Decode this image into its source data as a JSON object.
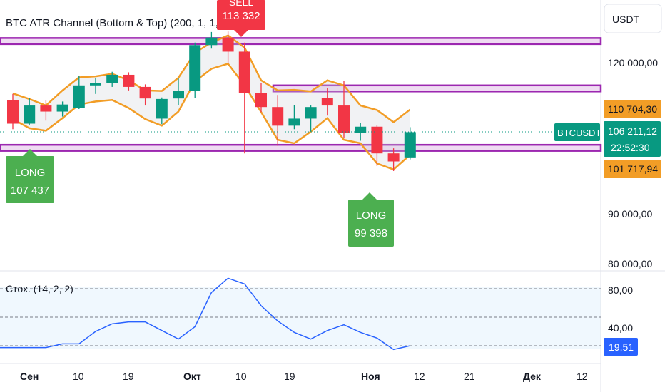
{
  "indicator_title": "BTC ATR Channel (Bottom & Top) (200, 1, 1, 1,1)",
  "currency": "USDT",
  "stoch_title": "Стох. (14, 2, 2)",
  "time_labels": [
    "Сен",
    "10",
    "19",
    "Окт",
    "10",
    "19",
    "Ноя",
    "12",
    "21",
    "Дек",
    "12"
  ],
  "price_ticks": [
    "120 000,00",
    "90 000,00",
    "80 000,00"
  ],
  "price_tags": {
    "upper": "110 704,30",
    "symbol": "BTCUSDT",
    "last": "106 211,12",
    "countdown": "22:52:30",
    "lower": "101 717,94"
  },
  "stoch_ticks": [
    "80,00",
    "40,00"
  ],
  "stoch_value": "19,51",
  "signals": [
    {
      "type": "SELL",
      "line1": "SELL",
      "line2": "113 332"
    },
    {
      "type": "LONG",
      "line1": "LONG",
      "line2": "107 437"
    },
    {
      "type": "LONG",
      "line1": "LONG",
      "line2": "99 398"
    }
  ],
  "colors": {
    "up": "#089981",
    "down": "#f23645",
    "channel": "#f29d26",
    "zone": "#9c27b0",
    "stoch": "#2962ff",
    "long": "#4caf50",
    "sell": "#f23645"
  },
  "chart_data": {
    "type": "candlestick",
    "timeframe_weeks": true,
    "price_axis": [
      80000,
      125000
    ],
    "candles": [
      {
        "o": 112500,
        "h": 113800,
        "l": 106800,
        "c": 107900
      },
      {
        "o": 107900,
        "h": 113000,
        "l": 107700,
        "c": 111500
      },
      {
        "o": 111500,
        "h": 112600,
        "l": 108500,
        "c": 110300
      },
      {
        "o": 110300,
        "h": 112300,
        "l": 109300,
        "c": 111700
      },
      {
        "o": 111000,
        "h": 117400,
        "l": 110800,
        "c": 115500
      },
      {
        "o": 115500,
        "h": 117000,
        "l": 113800,
        "c": 116000
      },
      {
        "o": 116000,
        "h": 118200,
        "l": 115200,
        "c": 117600
      },
      {
        "o": 117600,
        "h": 118100,
        "l": 114500,
        "c": 115200
      },
      {
        "o": 115200,
        "h": 115700,
        "l": 111500,
        "c": 112900
      },
      {
        "o": 108900,
        "h": 113100,
        "l": 107800,
        "c": 112800
      },
      {
        "o": 112900,
        "h": 117000,
        "l": 111600,
        "c": 114400
      },
      {
        "o": 114400,
        "h": 124000,
        "l": 113000,
        "c": 123500
      },
      {
        "o": 123500,
        "h": 126100,
        "l": 122800,
        "c": 125000
      },
      {
        "o": 125000,
        "h": 126200,
        "l": 120000,
        "c": 122200
      },
      {
        "o": 122200,
        "h": 124000,
        "l": 102000,
        "c": 114000
      },
      {
        "o": 114000,
        "h": 116000,
        "l": 110200,
        "c": 111200
      },
      {
        "o": 111200,
        "h": 113600,
        "l": 103500,
        "c": 107500
      },
      {
        "o": 107500,
        "h": 111600,
        "l": 106800,
        "c": 108900
      },
      {
        "o": 108900,
        "h": 111500,
        "l": 106300,
        "c": 111200
      },
      {
        "o": 113000,
        "h": 115000,
        "l": 109500,
        "c": 111500
      },
      {
        "o": 111500,
        "h": 116400,
        "l": 105000,
        "c": 106000
      },
      {
        "o": 106000,
        "h": 108000,
        "l": 104500,
        "c": 107300
      },
      {
        "o": 107300,
        "h": 107600,
        "l": 99500,
        "c": 102000
      },
      {
        "o": 102000,
        "h": 103000,
        "l": 98500,
        "c": 100400
      },
      {
        "o": 101200,
        "h": 107200,
        "l": 100800,
        "c": 106211
      }
    ],
    "channel_upper": [
      113900,
      112800,
      111500,
      114500,
      117100,
      117300,
      117800,
      116500,
      114500,
      114400,
      117000,
      122000,
      124000,
      125400,
      123000,
      116500,
      114500,
      114600,
      114300,
      116500,
      115500,
      111500,
      110600,
      108200,
      110704
    ],
    "channel_lower": [
      108800,
      107000,
      106500,
      109000,
      111700,
      112300,
      112600,
      111000,
      108800,
      107500,
      110300,
      116300,
      118800,
      119800,
      115500,
      110200,
      104700,
      104000,
      106300,
      109000,
      104700,
      104000,
      100000,
      98800,
      101718
    ],
    "zones": [
      {
        "top": 124900,
        "bottom": 123700
      },
      {
        "top": 115500,
        "bottom": 114300
      },
      {
        "top": 103700,
        "bottom": 102500
      }
    ],
    "stochastic": {
      "ylim": [
        10,
        100
      ],
      "levels": [
        80,
        50,
        20
      ],
      "k": [
        18,
        18,
        18,
        22,
        22,
        35,
        43,
        45,
        45,
        36,
        27,
        40,
        76,
        91,
        85,
        62,
        46,
        34,
        27,
        36,
        42,
        34,
        28,
        16,
        20
      ]
    }
  }
}
